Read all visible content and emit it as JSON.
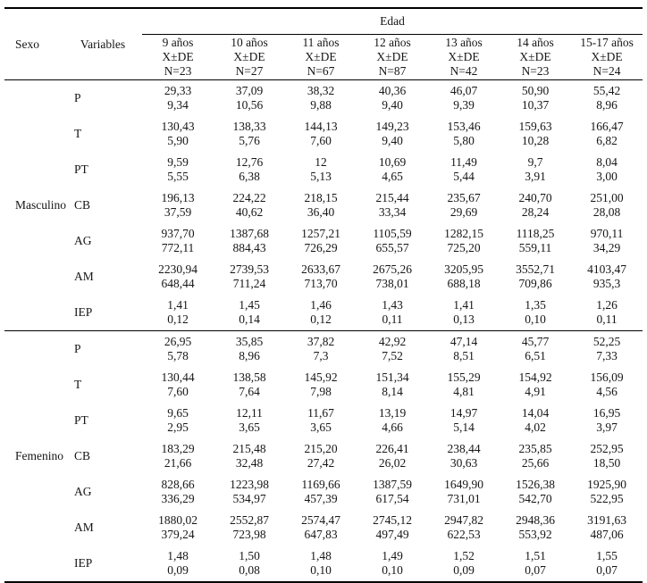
{
  "table": {
    "header": {
      "sexo_label": "Sexo",
      "variables_label": "Variables",
      "edad_label": "Edad",
      "age_columns": [
        {
          "age": "9 años",
          "stat": "X±DE",
          "n": "N=23"
        },
        {
          "age": "10 años",
          "stat": "X±DE",
          "n": "N=27"
        },
        {
          "age": "11 años",
          "stat": "X±DE",
          "n": "N=67"
        },
        {
          "age": "12 años",
          "stat": "X±DE",
          "n": "N=87"
        },
        {
          "age": "13 años",
          "stat": "X±DE",
          "n": "N=42"
        },
        {
          "age": "14 años",
          "stat": "X±DE",
          "n": "N=23"
        },
        {
          "age": "15-17 años",
          "stat": "X±DE",
          "n": "N=24"
        }
      ]
    },
    "sections": [
      {
        "sex": "Masculino",
        "rows": [
          {
            "variable": "P",
            "cells": [
              [
                "29,33",
                "9,34"
              ],
              [
                "37,09",
                "10,56"
              ],
              [
                "38,32",
                "9,88"
              ],
              [
                "40,36",
                "9,40"
              ],
              [
                "46,07",
                "9,39"
              ],
              [
                "50,90",
                "10,37"
              ],
              [
                "55,42",
                "8,96"
              ]
            ]
          },
          {
            "variable": "T",
            "cells": [
              [
                "130,43",
                "5,90"
              ],
              [
                "138,33",
                "5,76"
              ],
              [
                "144,13",
                "7,60"
              ],
              [
                "149,23",
                "9,40"
              ],
              [
                "153,46",
                "5,80"
              ],
              [
                "159,63",
                "10,28"
              ],
              [
                "166,47",
                "6,82"
              ]
            ]
          },
          {
            "variable": "PT",
            "cells": [
              [
                "9,59",
                "5,55"
              ],
              [
                "12,76",
                "6,38"
              ],
              [
                "12",
                "5,13"
              ],
              [
                "10,69",
                "4,65"
              ],
              [
                "11,49",
                "5,44"
              ],
              [
                "9,7",
                "3,91"
              ],
              [
                "8,04",
                "3,00"
              ]
            ]
          },
          {
            "variable": "CB",
            "cells": [
              [
                "196,13",
                "37,59"
              ],
              [
                "224,22",
                "40,62"
              ],
              [
                "218,15",
                "36,40"
              ],
              [
                "215,44",
                "33,34"
              ],
              [
                "235,67",
                "29,69"
              ],
              [
                "240,70",
                "28,24"
              ],
              [
                "251,00",
                "28,08"
              ]
            ]
          },
          {
            "variable": "AG",
            "cells": [
              [
                "937,70",
                "772,11"
              ],
              [
                "1387,68",
                "884,43"
              ],
              [
                "1257,21",
                "726,29"
              ],
              [
                "1105,59",
                "655,57"
              ],
              [
                "1282,15",
                "725,20"
              ],
              [
                "1118,25",
                "559,11"
              ],
              [
                "970,11",
                "34,29"
              ]
            ]
          },
          {
            "variable": "AM",
            "cells": [
              [
                "2230,94",
                "648,44"
              ],
              [
                "2739,53",
                "711,24"
              ],
              [
                "2633,67",
                "713,70"
              ],
              [
                "2675,26",
                "738,01"
              ],
              [
                "3205,95",
                "688,18"
              ],
              [
                "3552,71",
                "709,86"
              ],
              [
                "4103,47",
                "935,3"
              ]
            ]
          },
          {
            "variable": "IEP",
            "cells": [
              [
                "1,41",
                "0,12"
              ],
              [
                "1,45",
                "0,14"
              ],
              [
                "1,46",
                "0,12"
              ],
              [
                "1,43",
                "0,11"
              ],
              [
                "1,41",
                "0,13"
              ],
              [
                "1,35",
                "0,10"
              ],
              [
                "1,26",
                "0,11"
              ]
            ]
          }
        ]
      },
      {
        "sex": "Femenino",
        "rows": [
          {
            "variable": "P",
            "cells": [
              [
                "26,95",
                "5,78"
              ],
              [
                "35,85",
                "8,96"
              ],
              [
                "37,82",
                "7,3"
              ],
              [
                "42,92",
                "7,52"
              ],
              [
                "47,14",
                "8,51"
              ],
              [
                "45,77",
                "6,51"
              ],
              [
                "52,25",
                "7,33"
              ]
            ]
          },
          {
            "variable": "T",
            "cells": [
              [
                "130,44",
                "7,60"
              ],
              [
                "138,58",
                "7,64"
              ],
              [
                "145,92",
                "7,98"
              ],
              [
                "151,34",
                "8,14"
              ],
              [
                "155,29",
                "4,81"
              ],
              [
                "154,92",
                "4,91"
              ],
              [
                "156,09",
                "4,56"
              ]
            ]
          },
          {
            "variable": "PT",
            "cells": [
              [
                "9,65",
                "2,95"
              ],
              [
                "12,11",
                "3,65"
              ],
              [
                "11,67",
                "3,65"
              ],
              [
                "13,19",
                "4,66"
              ],
              [
                "14,97",
                "5,14"
              ],
              [
                "14,04",
                "4,02"
              ],
              [
                "16,95",
                "3,97"
              ]
            ]
          },
          {
            "variable": "CB",
            "cells": [
              [
                "183,29",
                "21,66"
              ],
              [
                "215,48",
                "32,48"
              ],
              [
                "215,20",
                "27,42"
              ],
              [
                "226,41",
                "26,02"
              ],
              [
                "238,44",
                "30,63"
              ],
              [
                "235,85",
                "25,66"
              ],
              [
                "252,95",
                "18,50"
              ]
            ]
          },
          {
            "variable": "AG",
            "cells": [
              [
                "828,66",
                "336,29"
              ],
              [
                "1223,98",
                "534,97"
              ],
              [
                "1169,66",
                "457,39"
              ],
              [
                "1387,59",
                "617,54"
              ],
              [
                "1649,90",
                "731,01"
              ],
              [
                "1526,38",
                "542,70"
              ],
              [
                "1925,90",
                "522,95"
              ]
            ]
          },
          {
            "variable": "AM",
            "cells": [
              [
                "1880,02",
                "379,24"
              ],
              [
                "2552,87",
                "723,98"
              ],
              [
                "2574,47",
                "647,83"
              ],
              [
                "2745,12",
                "497,49"
              ],
              [
                "2947,82",
                "622,53"
              ],
              [
                "2948,36",
                "553,92"
              ],
              [
                "3191,63",
                "487,06"
              ]
            ]
          },
          {
            "variable": "IEP",
            "cells": [
              [
                "1,48",
                "0,09"
              ],
              [
                "1,50",
                "0,08"
              ],
              [
                "1,48",
                "0,10"
              ],
              [
                "1,49",
                "0,10"
              ],
              [
                "1,52",
                "0,09"
              ],
              [
                "1,51",
                "0,07"
              ],
              [
                "1,55",
                "0,07"
              ]
            ]
          }
        ]
      }
    ]
  }
}
